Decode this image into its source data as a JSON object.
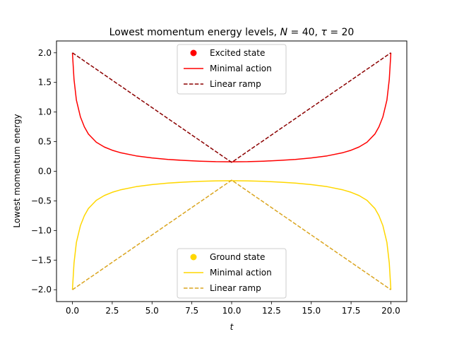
{
  "chart_data": {
    "type": "line",
    "title": "Lowest momentum energy levels, N = 40, τ = 20",
    "title_parts": {
      "prefix": "Lowest momentum energy levels, ",
      "n_symbol": "N",
      "n_value": " = 40, ",
      "tau_symbol": "τ",
      "tau_value": " = 20"
    },
    "xlabel": "t",
    "ylabel": "Lowest momentum energy",
    "xlim": [
      -1.0,
      21.0
    ],
    "ylim": [
      -2.2,
      2.2
    ],
    "xticks": [
      0.0,
      2.5,
      5.0,
      7.5,
      10.0,
      12.5,
      15.0,
      17.5,
      20.0
    ],
    "xtick_labels": [
      "0.0",
      "2.5",
      "5.0",
      "7.5",
      "10.0",
      "12.5",
      "15.0",
      "17.5",
      "20.0"
    ],
    "yticks": [
      -2.0,
      -1.5,
      -1.0,
      -0.5,
      0.0,
      0.5,
      1.0,
      1.5,
      2.0
    ],
    "ytick_labels": [
      "−2.0",
      "−1.5",
      "−1.0",
      "−0.5",
      "0.0",
      "0.5",
      "1.0",
      "1.5",
      "2.0"
    ],
    "grid": false,
    "series": [
      {
        "name": "Minimal action",
        "state": "excited",
        "style": "solid",
        "color": "#ff0000",
        "x": [
          0.0,
          0.1,
          0.25,
          0.5,
          0.75,
          1.0,
          1.5,
          2.0,
          2.5,
          3.0,
          4.0,
          5.0,
          6.0,
          7.0,
          8.0,
          9.0,
          10.0,
          11.0,
          12.0,
          13.0,
          14.0,
          15.0,
          16.0,
          17.0,
          17.5,
          18.0,
          18.5,
          19.0,
          19.25,
          19.5,
          19.75,
          19.9,
          20.0
        ],
        "y": [
          2.0,
          1.55,
          1.2,
          0.92,
          0.75,
          0.63,
          0.49,
          0.41,
          0.355,
          0.315,
          0.26,
          0.225,
          0.2,
          0.183,
          0.17,
          0.162,
          0.16,
          0.162,
          0.17,
          0.183,
          0.2,
          0.225,
          0.26,
          0.315,
          0.355,
          0.41,
          0.49,
          0.63,
          0.75,
          0.92,
          1.2,
          1.55,
          2.0
        ]
      },
      {
        "name": "Linear ramp",
        "state": "excited",
        "style": "dashed",
        "color": "#8b0000",
        "x": [
          0.0,
          10.0,
          20.0
        ],
        "y": [
          2.0,
          0.15,
          2.0
        ]
      },
      {
        "name": "Minimal action",
        "state": "ground",
        "style": "solid",
        "color": "#ffd700",
        "x": [
          0.0,
          0.1,
          0.25,
          0.5,
          0.75,
          1.0,
          1.5,
          2.0,
          2.5,
          3.0,
          4.0,
          5.0,
          6.0,
          7.0,
          8.0,
          9.0,
          10.0,
          11.0,
          12.0,
          13.0,
          14.0,
          15.0,
          16.0,
          17.0,
          17.5,
          18.0,
          18.5,
          19.0,
          19.25,
          19.5,
          19.75,
          19.9,
          20.0
        ],
        "y": [
          -2.0,
          -1.55,
          -1.2,
          -0.92,
          -0.75,
          -0.63,
          -0.49,
          -0.41,
          -0.355,
          -0.315,
          -0.26,
          -0.225,
          -0.2,
          -0.183,
          -0.17,
          -0.162,
          -0.16,
          -0.162,
          -0.17,
          -0.183,
          -0.2,
          -0.225,
          -0.26,
          -0.315,
          -0.355,
          -0.41,
          -0.49,
          -0.63,
          -0.75,
          -0.92,
          -1.2,
          -1.55,
          -2.0
        ]
      },
      {
        "name": "Linear ramp",
        "state": "ground",
        "style": "dashed",
        "color": "#daa520",
        "x": [
          0.0,
          10.0,
          20.0
        ],
        "y": [
          -2.0,
          -0.15,
          -2.0
        ]
      }
    ],
    "legends": [
      {
        "placement": "upper center",
        "entries": [
          {
            "label": "Excited state",
            "marker": "dot",
            "color": "#ff0000"
          },
          {
            "label": "Minimal action",
            "marker": "solid",
            "color": "#ff0000"
          },
          {
            "label": "Linear ramp",
            "marker": "dashed",
            "color": "#8b0000"
          }
        ]
      },
      {
        "placement": "lower center",
        "entries": [
          {
            "label": "Ground state",
            "marker": "dot",
            "color": "#ffd700"
          },
          {
            "label": "Minimal action",
            "marker": "solid",
            "color": "#ffd700"
          },
          {
            "label": "Linear ramp",
            "marker": "dashed",
            "color": "#daa520"
          }
        ]
      }
    ]
  }
}
